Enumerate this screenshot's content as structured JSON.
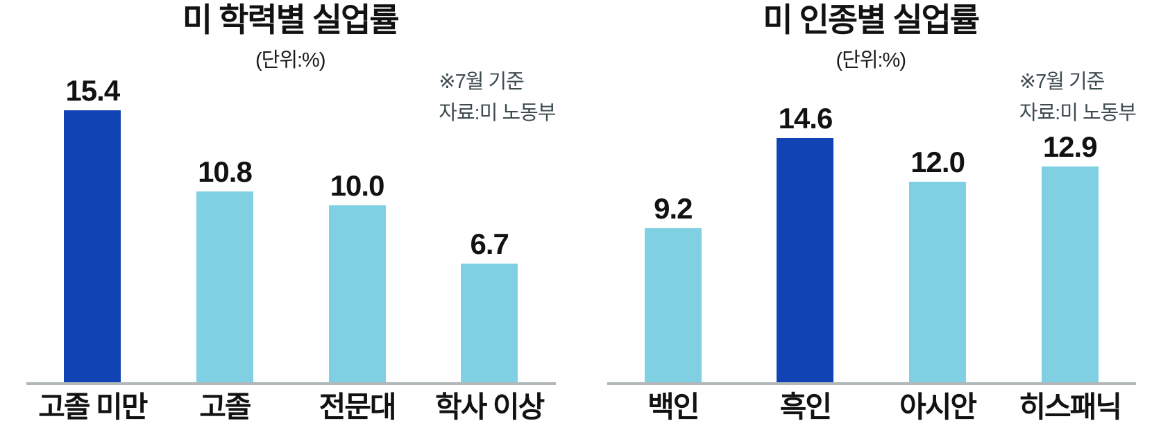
{
  "colors": {
    "background": "#ffffff",
    "bar": "#7fd0e2",
    "bar_highlight": "#1243b5",
    "axis_line": "#b2b8ba",
    "note_text": "#3e4c4f",
    "text": "#121212"
  },
  "chart_data": [
    {
      "type": "bar",
      "title": "미 학력별 실업률",
      "subtitle": "(단위:%)",
      "annotations": [
        "※7월 기준",
        "자료:미 노동부"
      ],
      "categories": [
        "고졸 미만",
        "고졸",
        "전문대",
        "학사 이상"
      ],
      "values": [
        15.4,
        10.8,
        10.0,
        6.7
      ],
      "labels": [
        "15.4",
        "10.8",
        "10.0",
        "6.7"
      ],
      "highlight_index": 0,
      "xlabel": "",
      "ylabel": "",
      "ylim": [
        0,
        17.5
      ],
      "grid": false,
      "legend": "none"
    },
    {
      "type": "bar",
      "title": "미 인종별 실업률",
      "subtitle": "(단위:%)",
      "annotations": [
        "※7월 기준",
        "자료:미 노동부"
      ],
      "categories": [
        "백인",
        "흑인",
        "아시안",
        "히스패닉"
      ],
      "values": [
        9.2,
        14.6,
        12.0,
        12.9
      ],
      "labels": [
        "9.2",
        "14.6",
        "12.0",
        "12.9"
      ],
      "highlight_index": 1,
      "xlabel": "",
      "ylabel": "",
      "ylim": [
        0,
        18.5
      ],
      "grid": false,
      "legend": "none"
    }
  ]
}
